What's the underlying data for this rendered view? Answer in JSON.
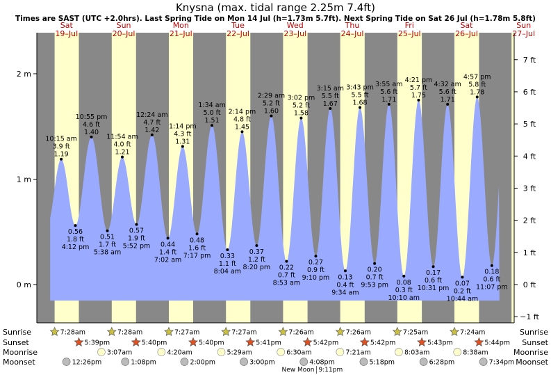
{
  "chart_data": {
    "type": "area",
    "title": "Knysna (max. tidal range 2.25m 7.4ft)",
    "subtitle": "Times are SAST (UTC +2.0hrs). Last Spring Tide on Mon 14 Jul (h=1.73m 5.7ft). Next Spring Tide on Sat 26 Jul (h=1.78m 5.8ft)",
    "x_unit": "hours since 19-Jul 00:00",
    "days": [
      {
        "dow": "Sat",
        "date": "19–Jul"
      },
      {
        "dow": "Sun",
        "date": "20–Jul"
      },
      {
        "dow": "Mon",
        "date": "21–Jul"
      },
      {
        "dow": "Tue",
        "date": "22–Jul"
      },
      {
        "dow": "Wed",
        "date": "23–Jul"
      },
      {
        "dow": "Thu",
        "date": "24–Jul"
      },
      {
        "dow": "Fri",
        "date": "25–Jul"
      },
      {
        "dow": "Sat",
        "date": "26–Jul"
      },
      {
        "dow": "Sun",
        "date": "27–Jul"
      }
    ],
    "left_axis": {
      "unit": "m",
      "ticks": [
        {
          "v": 0,
          "label": "0 m"
        },
        {
          "v": 1,
          "label": "1 m"
        },
        {
          "v": 2,
          "label": "2 m"
        }
      ]
    },
    "right_axis": {
      "unit": "ft",
      "ticks": [
        {
          "v": -1,
          "label": "−1 ft"
        },
        {
          "v": 0,
          "label": "0 ft"
        },
        {
          "v": 1,
          "label": "1 ft"
        },
        {
          "v": 2,
          "label": "2 ft"
        },
        {
          "v": 3,
          "label": "3 ft"
        },
        {
          "v": 4,
          "label": "4 ft"
        },
        {
          "v": 5,
          "label": "5 ft"
        },
        {
          "v": 6,
          "label": "6 ft"
        },
        {
          "v": 7,
          "label": "7 ft"
        }
      ]
    },
    "ylim_m": [
      -0.3,
      2.25
    ],
    "tides": [
      {
        "t": 10.25,
        "h": 1.19,
        "type": "high",
        "time": "10:15 am",
        "ft": "3.9 ft",
        "m": "1.19 m"
      },
      {
        "t": 16.2,
        "h": 0.56,
        "type": "low",
        "time": "4:12 pm",
        "ft": "1.8 ft",
        "m": "0.56 m"
      },
      {
        "t": 22.917,
        "h": 1.4,
        "type": "high",
        "time": "10:55 pm",
        "ft": "4.6 ft",
        "m": "1.40 m"
      },
      {
        "t": 29.633,
        "h": 0.51,
        "type": "low",
        "time": "5:38 am",
        "ft": "1.7 ft",
        "m": "0.51 m"
      },
      {
        "t": 35.9,
        "h": 1.21,
        "type": "high",
        "time": "11:54 am",
        "ft": "4.0 ft",
        "m": "1.21 m"
      },
      {
        "t": 41.867,
        "h": 0.57,
        "type": "low",
        "time": "5:52 pm",
        "ft": "1.9 ft",
        "m": "0.57 m"
      },
      {
        "t": 48.4,
        "h": 1.42,
        "type": "high",
        "time": "12:24 am",
        "ft": "4.7 ft",
        "m": "1.42 m"
      },
      {
        "t": 55.033,
        "h": 0.44,
        "type": "low",
        "time": "7:02 am",
        "ft": "1.4 ft",
        "m": "0.44 m"
      },
      {
        "t": 61.233,
        "h": 1.31,
        "type": "high",
        "time": "1:14 pm",
        "ft": "4.3 ft",
        "m": "1.31 m"
      },
      {
        "t": 67.283,
        "h": 0.48,
        "type": "low",
        "time": "7:17 pm",
        "ft": "1.6 ft",
        "m": "0.48 m"
      },
      {
        "t": 73.567,
        "h": 1.51,
        "type": "high",
        "time": "1:34 am",
        "ft": "5.0 ft",
        "m": "1.51 m"
      },
      {
        "t": 80.067,
        "h": 0.33,
        "type": "low",
        "time": "8:04 am",
        "ft": "1.1 ft",
        "m": "0.33 m"
      },
      {
        "t": 86.233,
        "h": 1.45,
        "type": "high",
        "time": "2:14 pm",
        "ft": "4.8 ft",
        "m": "1.45 m"
      },
      {
        "t": 92.333,
        "h": 0.37,
        "type": "low",
        "time": "8:20 pm",
        "ft": "1.2 ft",
        "m": "0.37 m"
      },
      {
        "t": 98.483,
        "h": 1.6,
        "type": "high",
        "time": "2:29 am",
        "ft": "5.2 ft",
        "m": "1.60 m"
      },
      {
        "t": 104.883,
        "h": 0.22,
        "type": "low",
        "time": "8:53 am",
        "ft": "0.7 ft",
        "m": "0.22 m"
      },
      {
        "t": 111.033,
        "h": 1.58,
        "type": "high",
        "time": "3:02 pm",
        "ft": "5.2 ft",
        "m": "1.58 m"
      },
      {
        "t": 117.167,
        "h": 0.27,
        "type": "low",
        "time": "9:10 pm",
        "ft": "0.9 ft",
        "m": "0.27 m"
      },
      {
        "t": 123.25,
        "h": 1.67,
        "type": "high",
        "time": "3:15 am",
        "ft": "5.5 ft",
        "m": "1.67 m"
      },
      {
        "t": 129.567,
        "h": 0.13,
        "type": "low",
        "time": "9:34 am",
        "ft": "0.4 ft",
        "m": "0.13 m"
      },
      {
        "t": 135.717,
        "h": 1.68,
        "type": "high",
        "time": "3:43 pm",
        "ft": "5.5 ft",
        "m": "1.68 m"
      },
      {
        "t": 141.883,
        "h": 0.2,
        "type": "low",
        "time": "9:53 pm",
        "ft": "0.7 ft",
        "m": "0.20 m"
      },
      {
        "t": 147.917,
        "h": 1.71,
        "type": "high",
        "time": "3:55 am",
        "ft": "5.6 ft",
        "m": "1.71 m"
      },
      {
        "t": 154.167,
        "h": 0.08,
        "type": "low",
        "time": "10:10 am",
        "ft": "0.3 ft",
        "m": "0.08 m"
      },
      {
        "t": 160.35,
        "h": 1.75,
        "type": "high",
        "time": "4:21 pm",
        "ft": "5.7 ft",
        "m": "1.75 m"
      },
      {
        "t": 166.517,
        "h": 0.17,
        "type": "low",
        "time": "10:31 pm",
        "ft": "0.6 ft",
        "m": "0.17 m"
      },
      {
        "t": 172.533,
        "h": 1.71,
        "type": "high",
        "time": "4:32 am",
        "ft": "5.6 ft",
        "m": "1.71 m"
      },
      {
        "t": 178.733,
        "h": 0.07,
        "type": "low",
        "time": "10:44 am",
        "ft": "0.2 ft",
        "m": "0.07 m"
      },
      {
        "t": 184.95,
        "h": 1.78,
        "type": "high",
        "time": "4:57 pm",
        "ft": "5.8 ft",
        "m": "1.78 m"
      },
      {
        "t": 191.117,
        "h": 0.18,
        "type": "low",
        "time": "11:07 pm",
        "ft": "0.6 ft",
        "m": "0.18 m"
      }
    ],
    "sunrise": [
      {
        "t": 7.467,
        "label": "7:28am"
      },
      {
        "t": 31.467,
        "label": "7:28am"
      },
      {
        "t": 55.45,
        "label": "7:27am"
      },
      {
        "t": 79.45,
        "label": "7:27am"
      },
      {
        "t": 103.433,
        "label": "7:26am"
      },
      {
        "t": 127.433,
        "label": "7:26am"
      },
      {
        "t": 151.417,
        "label": "7:25am"
      },
      {
        "t": 175.4,
        "label": "7:24am"
      }
    ],
    "sunset": [
      {
        "t": 17.65,
        "label": "5:39pm"
      },
      {
        "t": 41.667,
        "label": "5:40pm"
      },
      {
        "t": 65.667,
        "label": "5:40pm"
      },
      {
        "t": 89.683,
        "label": "5:41pm"
      },
      {
        "t": 113.7,
        "label": "5:42pm"
      },
      {
        "t": 137.7,
        "label": "5:42pm"
      },
      {
        "t": 161.717,
        "label": "5:43pm"
      },
      {
        "t": 185.733,
        "label": "5:44pm"
      }
    ],
    "moonrise": [
      {
        "t": 27.117,
        "label": "3:07am"
      },
      {
        "t": 52.333,
        "label": "4:20am"
      },
      {
        "t": 77.483,
        "label": "5:29am"
      },
      {
        "t": 102.5,
        "label": "6:30am"
      },
      {
        "t": 127.35,
        "label": "7:21am"
      },
      {
        "t": 152.05,
        "label": "8:03am"
      },
      {
        "t": 176.633,
        "label": "8:38am"
      }
    ],
    "moonset": [
      {
        "t": 12.433,
        "label": "12:26pm"
      },
      {
        "t": 37.133,
        "label": "1:08pm"
      },
      {
        "t": 62.0,
        "label": "2:00pm"
      },
      {
        "t": 87.0,
        "label": "3:00pm"
      },
      {
        "t": 112.133,
        "label": "4:08pm"
      },
      {
        "t": 137.3,
        "label": "5:18pm"
      },
      {
        "t": 162.467,
        "label": "6:28pm"
      },
      {
        "t": 187.567,
        "label": "7:34pm"
      }
    ],
    "row_labels": {
      "sunrise": "Sunrise",
      "sunset": "Sunset",
      "moonrise": "Moonrise",
      "moonset": "Moonset"
    },
    "new_moon": {
      "label": "New Moon",
      "time": "9:11pm",
      "t": 117.183
    },
    "colors": {
      "night": "#888888",
      "day": "#ffffcc",
      "water": "#99aaff",
      "day_label": "#c00000",
      "sun_star": "#ccc040",
      "sunset_star": "#e05020",
      "moonrise": "#ffffcc",
      "moonset": "#bbbbbb"
    }
  }
}
